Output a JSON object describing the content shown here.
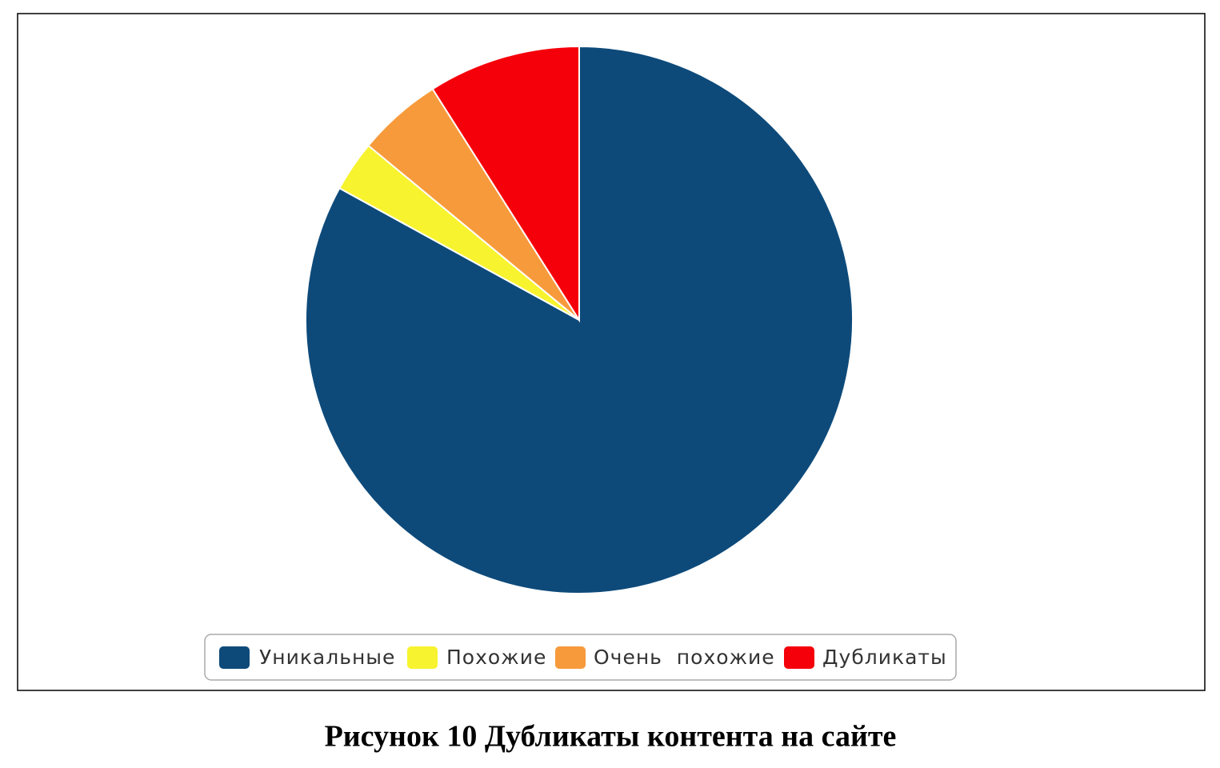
{
  "chart_data": {
    "type": "pie",
    "title": "Рисунок 10 Дубликаты контента на сайте",
    "categories": [
      "Уникальные",
      "Похожие",
      "Очень  похожие",
      "Дубликаты"
    ],
    "values": [
      83,
      3,
      5,
      9
    ],
    "colors": [
      "#0d4a7a",
      "#f7f32e",
      "#f79a3c",
      "#f5000a"
    ],
    "legend": "bottom"
  }
}
